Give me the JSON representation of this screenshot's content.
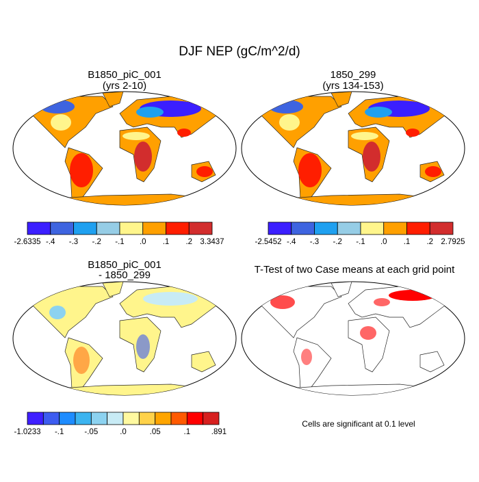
{
  "title": "DJF NEP (gC/m^2/d)",
  "panels": [
    {
      "title": [
        "B1850_piC_001",
        "(yrs 2-10)"
      ]
    },
    {
      "title": [
        "1850_299",
        "(yrs 134-153)"
      ]
    },
    {
      "title": [
        "B1850_piC_001",
        "- 1850_299"
      ]
    },
    {
      "title": [
        "T-Test of two Case means at each grid point"
      ]
    }
  ],
  "colorbars": [
    {
      "colors": [
        "#3b1fff",
        "#3e64e0",
        "#1fa0f0",
        "#96cde6",
        "#fff58c",
        "#ffa000",
        "#ff1e00",
        "#d22d2d"
      ],
      "labels": [
        "-2.6335",
        "-.4",
        "-.3",
        "-.2",
        "-.1",
        ".0",
        ".1",
        ".2",
        "3.3437"
      ]
    },
    {
      "colors": [
        "#3b1fff",
        "#3e64e0",
        "#1fa0f0",
        "#96cde6",
        "#fff58c",
        "#ffa000",
        "#ff1e00",
        "#d22d2d"
      ],
      "labels": [
        "-2.5452",
        "-.4",
        "-.3",
        "-.2",
        "-.1",
        ".0",
        ".1",
        ".2",
        "2.7925"
      ]
    },
    {
      "colors": [
        "#3f1fff",
        "#3d5cf0",
        "#1e8cff",
        "#3cb4f0",
        "#8cd2f0",
        "#c8ebf5",
        "#fff9a0",
        "#ffd24a",
        "#ffa500",
        "#ff5a00",
        "#ff0000",
        "#d7201f"
      ],
      "labels": [
        "-1.0233",
        "-.1",
        "-.05",
        ".0",
        ".05",
        ".1",
        ".891"
      ]
    }
  ],
  "footnote": "Cells are significant at 0.1 level"
}
